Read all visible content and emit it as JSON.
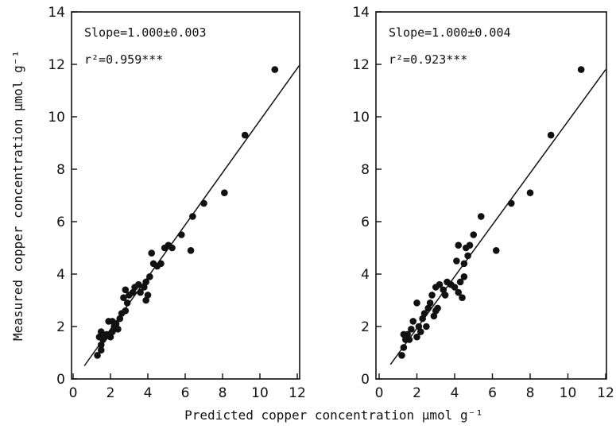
{
  "xlabel": "Predicted copper concentration  μmol g⁻¹",
  "ylabel": "Measured copper concentration  μmol g⁻¹",
  "chart_data": [
    {
      "type": "scatter",
      "annotations": [
        "Slope=1.000±0.003",
        "r²=0.959***"
      ],
      "xlim": [
        0,
        13
      ],
      "ylim": [
        0,
        14
      ],
      "xticks": [
        0,
        2,
        4,
        6,
        8,
        10,
        12
      ],
      "yticks": [
        0,
        2,
        4,
        6,
        8,
        10,
        12,
        14
      ],
      "fit_line": [
        [
          0.6,
          0.5
        ],
        [
          12.1,
          11.95
        ]
      ],
      "points": [
        [
          1.3,
          0.9
        ],
        [
          1.5,
          1.1
        ],
        [
          1.5,
          1.3
        ],
        [
          1.4,
          1.6
        ],
        [
          1.6,
          1.5
        ],
        [
          1.5,
          1.8
        ],
        [
          1.7,
          1.6
        ],
        [
          1.8,
          1.7
        ],
        [
          1.9,
          2.2
        ],
        [
          2.0,
          1.6
        ],
        [
          2.1,
          1.8
        ],
        [
          2.2,
          2.0
        ],
        [
          2.3,
          2.1
        ],
        [
          2.1,
          2.2
        ],
        [
          2.4,
          1.9
        ],
        [
          2.5,
          2.3
        ],
        [
          2.6,
          2.5
        ],
        [
          2.8,
          2.6
        ],
        [
          2.9,
          2.9
        ],
        [
          2.7,
          3.1
        ],
        [
          3.0,
          3.2
        ],
        [
          2.8,
          3.4
        ],
        [
          3.2,
          3.3
        ],
        [
          3.3,
          3.5
        ],
        [
          3.5,
          3.6
        ],
        [
          3.6,
          3.3
        ],
        [
          3.8,
          3.5
        ],
        [
          3.9,
          3.7
        ],
        [
          4.0,
          3.2
        ],
        [
          3.9,
          3.0
        ],
        [
          4.1,
          3.9
        ],
        [
          4.2,
          4.8
        ],
        [
          4.3,
          4.4
        ],
        [
          4.5,
          4.3
        ],
        [
          4.7,
          4.4
        ],
        [
          4.9,
          5.0
        ],
        [
          5.1,
          5.1
        ],
        [
          5.3,
          5.0
        ],
        [
          5.8,
          5.5
        ],
        [
          6.3,
          4.9
        ],
        [
          6.4,
          6.2
        ],
        [
          7.0,
          6.7
        ],
        [
          8.1,
          7.1
        ],
        [
          9.2,
          9.3
        ],
        [
          10.8,
          11.8
        ]
      ]
    },
    {
      "type": "scatter",
      "annotations": [
        "Slope=1.000±0.004",
        "r²=0.923***"
      ],
      "xlim": [
        0,
        13
      ],
      "ylim": [
        0,
        14
      ],
      "xticks": [
        0,
        2,
        4,
        6,
        8,
        10,
        12
      ],
      "yticks": [
        0,
        2,
        4,
        6,
        8,
        10,
        12,
        14
      ],
      "fit_line": [
        [
          0.6,
          0.55
        ],
        [
          12.0,
          11.8
        ]
      ],
      "points": [
        [
          1.2,
          0.9
        ],
        [
          1.3,
          1.2
        ],
        [
          1.4,
          1.5
        ],
        [
          1.5,
          1.7
        ],
        [
          1.3,
          1.7
        ],
        [
          1.6,
          1.5
        ],
        [
          1.7,
          1.9
        ],
        [
          1.8,
          2.2
        ],
        [
          2.0,
          1.6
        ],
        [
          2.1,
          2.0
        ],
        [
          2.2,
          1.8
        ],
        [
          2.3,
          2.3
        ],
        [
          2.4,
          2.5
        ],
        [
          2.0,
          2.9
        ],
        [
          2.5,
          2.0
        ],
        [
          2.6,
          2.7
        ],
        [
          2.7,
          2.9
        ],
        [
          2.9,
          2.4
        ],
        [
          3.0,
          2.6
        ],
        [
          3.1,
          2.7
        ],
        [
          2.8,
          3.2
        ],
        [
          3.0,
          3.5
        ],
        [
          3.2,
          3.6
        ],
        [
          3.4,
          3.4
        ],
        [
          3.5,
          3.2
        ],
        [
          3.6,
          3.7
        ],
        [
          3.8,
          3.6
        ],
        [
          4.0,
          3.5
        ],
        [
          4.2,
          3.3
        ],
        [
          4.4,
          3.1
        ],
        [
          4.3,
          3.7
        ],
        [
          4.5,
          3.9
        ],
        [
          4.5,
          4.4
        ],
        [
          4.1,
          4.5
        ],
        [
          4.7,
          4.7
        ],
        [
          4.8,
          5.1
        ],
        [
          4.2,
          5.1
        ],
        [
          5.0,
          5.5
        ],
        [
          5.4,
          6.2
        ],
        [
          6.2,
          4.9
        ],
        [
          7.0,
          6.7
        ],
        [
          8.0,
          7.1
        ],
        [
          9.1,
          9.3
        ],
        [
          10.7,
          11.8
        ],
        [
          4.6,
          5.0
        ]
      ]
    }
  ]
}
